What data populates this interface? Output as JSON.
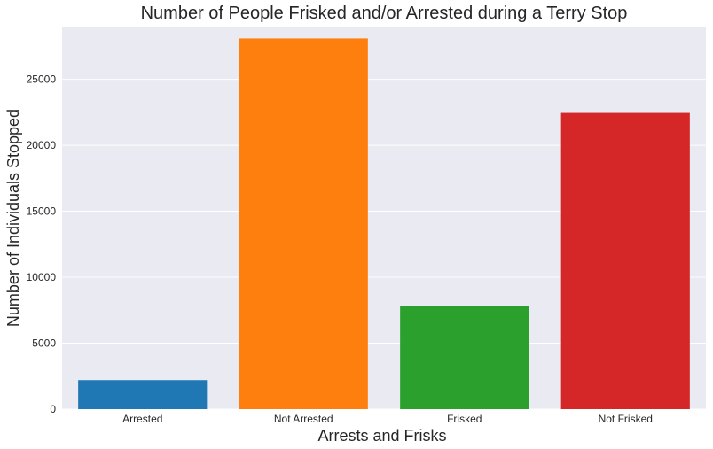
{
  "chart_data": {
    "type": "bar",
    "title": "Number of People Frisked and/or Arrested during a Terry Stop",
    "xlabel": "Arrests and Frisks",
    "ylabel": "Number of Individuals Stopped",
    "categories": [
      "Arrested",
      "Not Arrested",
      "Frisked",
      "Not Frisked"
    ],
    "values": [
      2200,
      28100,
      7850,
      22450
    ],
    "colors": [
      "#1f77b4",
      "#ff7f0e",
      "#2ca02c",
      "#d62728"
    ],
    "ylim": [
      0,
      29000
    ],
    "yticks": [
      0,
      5000,
      10000,
      15000,
      20000,
      25000
    ],
    "grid": true,
    "legend": "none"
  }
}
